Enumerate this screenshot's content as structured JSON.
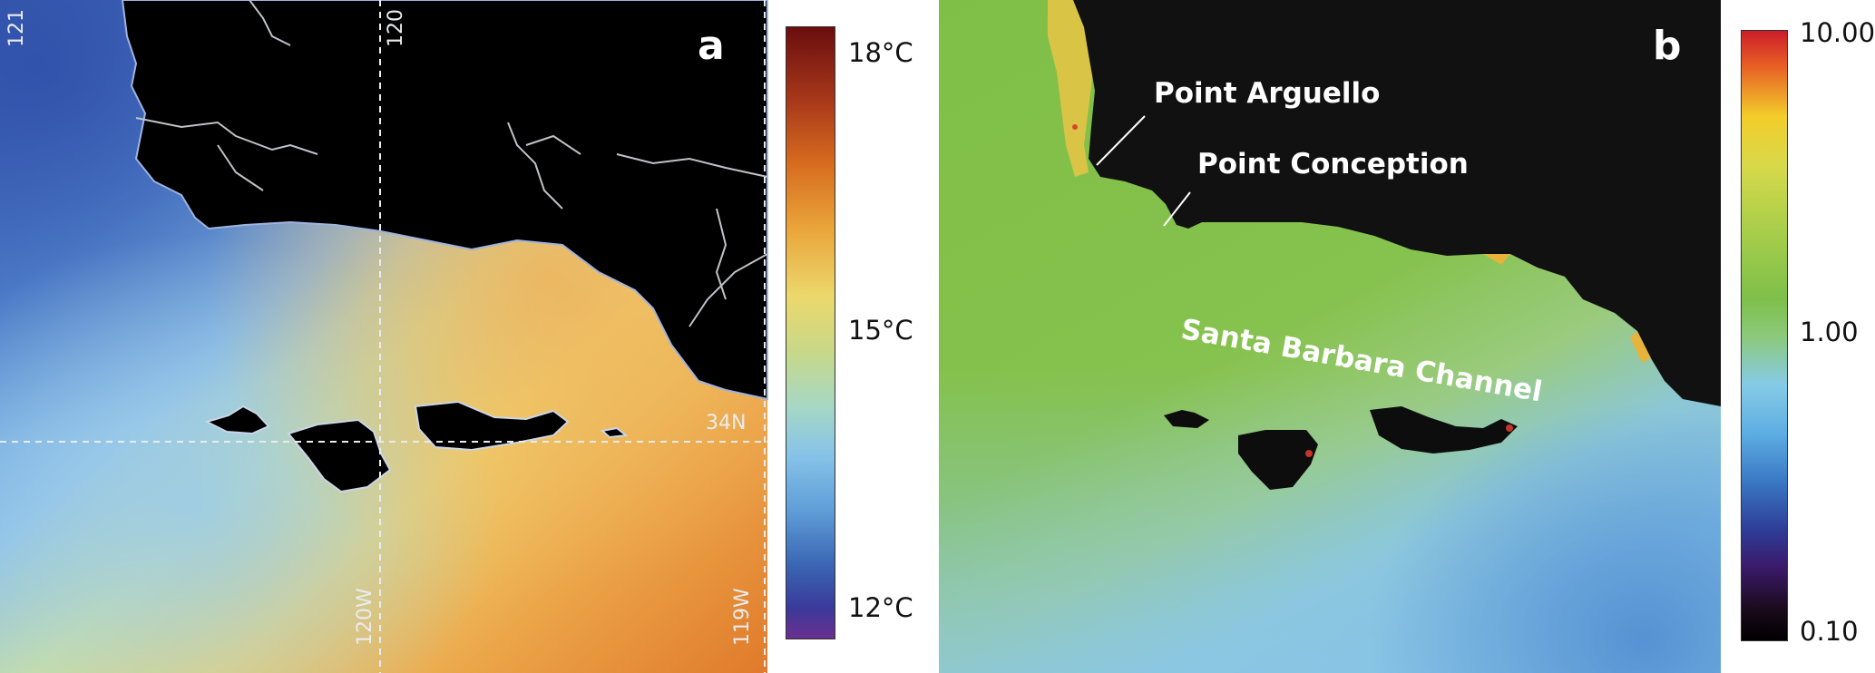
{
  "panel_a": {
    "letter": "a",
    "grid_labels": {
      "lon_121": "121",
      "lon_120_top": "120",
      "lat_34": "34N",
      "lon_120_bottom": "120W",
      "lon_119_bottom": "119W"
    },
    "colorbar": {
      "ticks": [
        "18°C",
        "15°C",
        "12°C"
      ]
    }
  },
  "panel_b": {
    "letter": "b",
    "labels": {
      "point_arguello": "Point Arguello",
      "point_conception": "Point Conception",
      "channel": "Santa Barbara Channel"
    },
    "colorbar": {
      "ticks": [
        "10.00",
        "1.00",
        "0.10"
      ]
    }
  }
}
